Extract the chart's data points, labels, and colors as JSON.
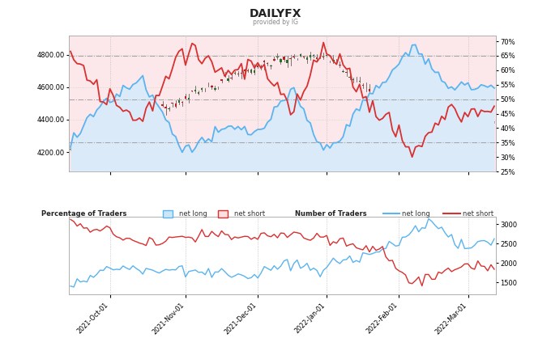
{
  "title_line1": "DAILYFX",
  "title_line2": "provided by IG",
  "price_ylim": [
    4080,
    4920
  ],
  "price_yticks": [
    4200.0,
    4400.0,
    4600.0,
    4800.0
  ],
  "pct_ylim": [
    25,
    72
  ],
  "pct_yticks": [
    25,
    30,
    35,
    40,
    45,
    50,
    55,
    60,
    65,
    70
  ],
  "num_ylim": [
    1200,
    3200
  ],
  "num_yticks": [
    1500,
    2000,
    2500,
    3000
  ],
  "bg_pink": "#fce8ea",
  "bg_blue": "#dbeaf8",
  "grid_color": "#bbbbbb",
  "dashdot_color": "#999999",
  "green_grid_color": "#c0ddc0",
  "pct_long_line": "#5ab4f0",
  "pct_short_line": "#d93030",
  "num_long_color": "#5ab4f0",
  "num_short_color": "#d93030",
  "candle_up": "#2a6e2a",
  "candle_down": "#bb2222",
  "pct_long_fill": "#cce5f7",
  "pct_short_fill": "#fce0e0",
  "x_label_display": [
    "2021-Oct-01",
    "2021-Nov-01",
    "2021-Dec-01",
    "2022-Jan-01",
    "2022-Feb-01",
    "2022-Mar-01"
  ],
  "legend_pct_label": "Percentage of Traders",
  "legend_num_label": "Number of Traders",
  "legend_pct_long": "net long",
  "legend_pct_short": "net short",
  "legend_num_long": "net long",
  "legend_num_short": "net short"
}
